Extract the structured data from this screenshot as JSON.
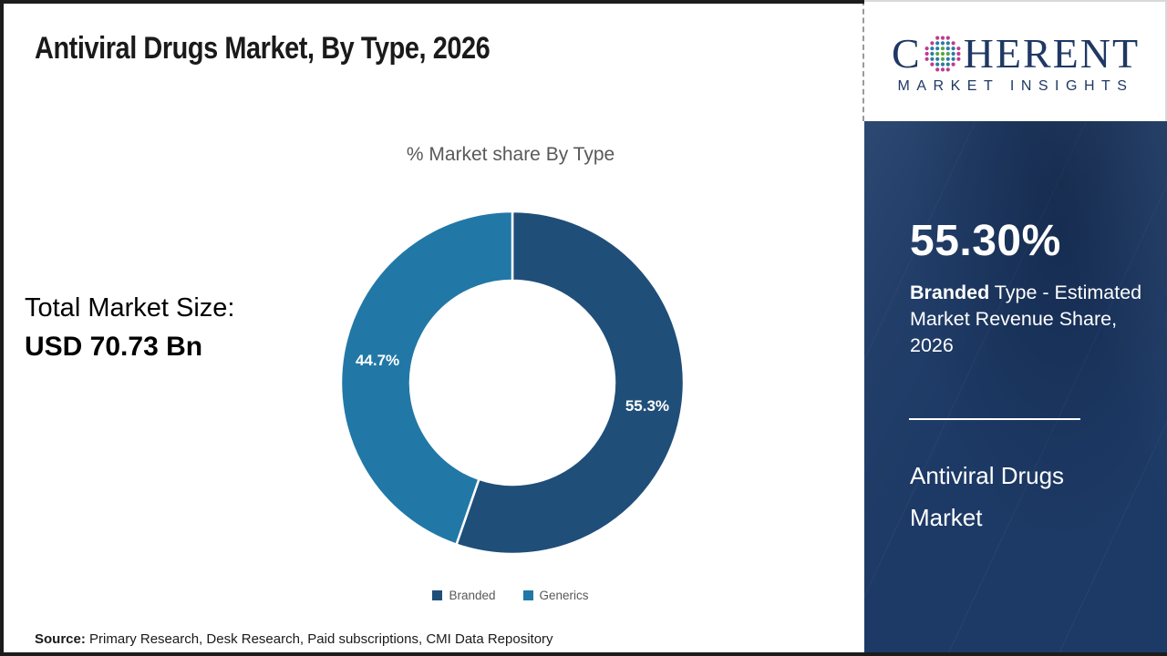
{
  "header": {
    "title": "Antiviral Drugs Market, By Type, 2026"
  },
  "logo": {
    "brand_first_letter": "C",
    "brand_rest": "HERENT",
    "tagline": "MARKET INSIGHTS",
    "brand_color": "#1f3864",
    "globe_icon": "dotted-globe",
    "globe_colors": {
      "inner": "#56a546",
      "middle": "#2b7ba4",
      "outer": "#be3c8e"
    }
  },
  "left_panel": {
    "total_label": "Total Market Size:",
    "total_value": "USD 70.73 Bn"
  },
  "chart_data": {
    "type": "pie",
    "donut": true,
    "title": "% Market share By Type",
    "categories": [
      "Branded",
      "Generics"
    ],
    "values": [
      55.3,
      44.7
    ],
    "slice_labels": [
      "55.3%",
      "44.7%"
    ],
    "colors": [
      "#1f4e79",
      "#2178a6"
    ],
    "legend_position": "bottom",
    "start_angle_deg": 0,
    "direction": "clockwise"
  },
  "sidebar": {
    "stat_value": "55.30%",
    "stat_desc_bold": "Branded",
    "stat_desc_rest": " Type - Estimated Market Revenue Share, 2026",
    "market_name_line1": "Antiviral Drugs",
    "market_name_line2": "Market",
    "bg_color": "#1d3a66"
  },
  "footer": {
    "source_label": "Source:",
    "source_text": " Primary Research, Desk Research, Paid subscriptions, CMI Data Repository"
  }
}
